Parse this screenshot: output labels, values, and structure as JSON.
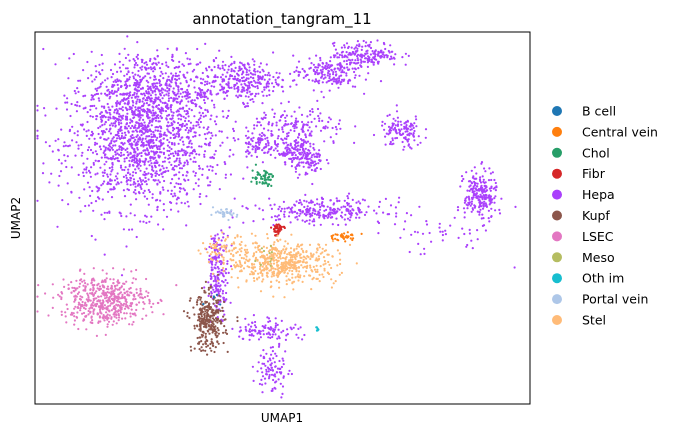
{
  "chart_data": {
    "type": "scatter",
    "title": "annotation_tangram_11",
    "xlabel": "UMAP1",
    "ylabel": "UMAP2",
    "xlim": [
      0,
      100
    ],
    "ylim": [
      0,
      100
    ],
    "grid": false,
    "ticks": false,
    "legend_position": "right",
    "categories": [
      "B cell",
      "Central vein",
      "Chol",
      "Fibr",
      "Hepa",
      "Kupf",
      "LSEC",
      "Meso",
      "Oth im",
      "Portal vein",
      "Stel"
    ],
    "colors": {
      "B cell": "#1f77b4",
      "Central vein": "#ff7f0e",
      "Chol": "#279e68",
      "Fibr": "#d62728",
      "Hepa": "#aa40fc",
      "Kupf": "#8c564b",
      "LSEC": "#e377c2",
      "Meso": "#b5bd61",
      "Oth im": "#17becf",
      "Portal vein": "#aec7e8",
      "Stel": "#ffbb78"
    },
    "clusters": [
      {
        "label": "Hepa",
        "center": [
          22,
          70
        ],
        "spread": [
          14,
          16
        ],
        "n": 1400
      },
      {
        "label": "Hepa",
        "center": [
          24,
          85
        ],
        "spread": [
          12,
          9
        ],
        "n": 500
      },
      {
        "label": "Hepa",
        "center": [
          42,
          87
        ],
        "spread": [
          7,
          5
        ],
        "n": 260
      },
      {
        "label": "Hepa",
        "center": [
          59,
          89
        ],
        "spread": [
          6,
          4
        ],
        "n": 180
      },
      {
        "label": "Hepa",
        "center": [
          67,
          94
        ],
        "spread": [
          6,
          3
        ],
        "n": 180
      },
      {
        "label": "Hepa",
        "center": [
          45,
          70
        ],
        "spread": [
          3,
          3
        ],
        "n": 70
      },
      {
        "label": "Hepa",
        "center": [
          55,
          66
        ],
        "spread": [
          3,
          4
        ],
        "n": 110
      },
      {
        "label": "Hepa",
        "center": [
          53,
          74
        ],
        "spread": [
          9,
          5
        ],
        "n": 160
      },
      {
        "label": "Hepa",
        "center": [
          74,
          73
        ],
        "spread": [
          4,
          4
        ],
        "n": 120
      },
      {
        "label": "Hepa",
        "center": [
          58,
          52
        ],
        "spread": [
          12,
          3
        ],
        "n": 260
      },
      {
        "label": "Hepa",
        "center": [
          80,
          45
        ],
        "spread": [
          12,
          5
        ],
        "n": 40
      },
      {
        "label": "Hepa",
        "center": [
          90,
          56
        ],
        "spread": [
          3,
          6
        ],
        "n": 230
      },
      {
        "label": "Hepa",
        "center": [
          52,
          68
        ],
        "spread": [
          3,
          3
        ],
        "n": 90
      },
      {
        "label": "Hepa",
        "center": [
          37,
          35
        ],
        "spread": [
          2,
          10
        ],
        "n": 180
      },
      {
        "label": "Hepa",
        "center": [
          47,
          20
        ],
        "spread": [
          6,
          3
        ],
        "n": 100
      },
      {
        "label": "Hepa",
        "center": [
          48,
          9
        ],
        "spread": [
          3,
          6
        ],
        "n": 90
      },
      {
        "label": "Chol",
        "center": [
          46,
          61
        ],
        "spread": [
          2,
          2
        ],
        "n": 55
      },
      {
        "label": "Fibr",
        "center": [
          49,
          47
        ],
        "spread": [
          1.2,
          1.5
        ],
        "n": 40
      },
      {
        "label": "Central vein",
        "center": [
          62,
          45
        ],
        "spread": [
          3,
          1
        ],
        "n": 35
      },
      {
        "label": "Portal vein",
        "center": [
          38,
          51
        ],
        "spread": [
          2.5,
          1.2
        ],
        "n": 35
      },
      {
        "label": "Stel",
        "center": [
          50,
          38
        ],
        "spread": [
          10,
          5
        ],
        "n": 520
      },
      {
        "label": "Stel",
        "center": [
          38,
          42
        ],
        "spread": [
          4,
          3
        ],
        "n": 60
      },
      {
        "label": "Kupf",
        "center": [
          35,
          22
        ],
        "spread": [
          3,
          7
        ],
        "n": 300
      },
      {
        "label": "LSEC",
        "center": [
          14,
          28
        ],
        "spread": [
          8,
          6
        ],
        "n": 520
      },
      {
        "label": "Oth im",
        "center": [
          57,
          20
        ],
        "spread": [
          0.5,
          0.5
        ],
        "n": 8
      },
      {
        "label": "Meso",
        "center": [
          47,
          40
        ],
        "spread": [
          3,
          3
        ],
        "n": 10
      },
      {
        "label": "B cell",
        "center": [
          36,
          28
        ],
        "spread": [
          2,
          2
        ],
        "n": 5
      }
    ]
  }
}
